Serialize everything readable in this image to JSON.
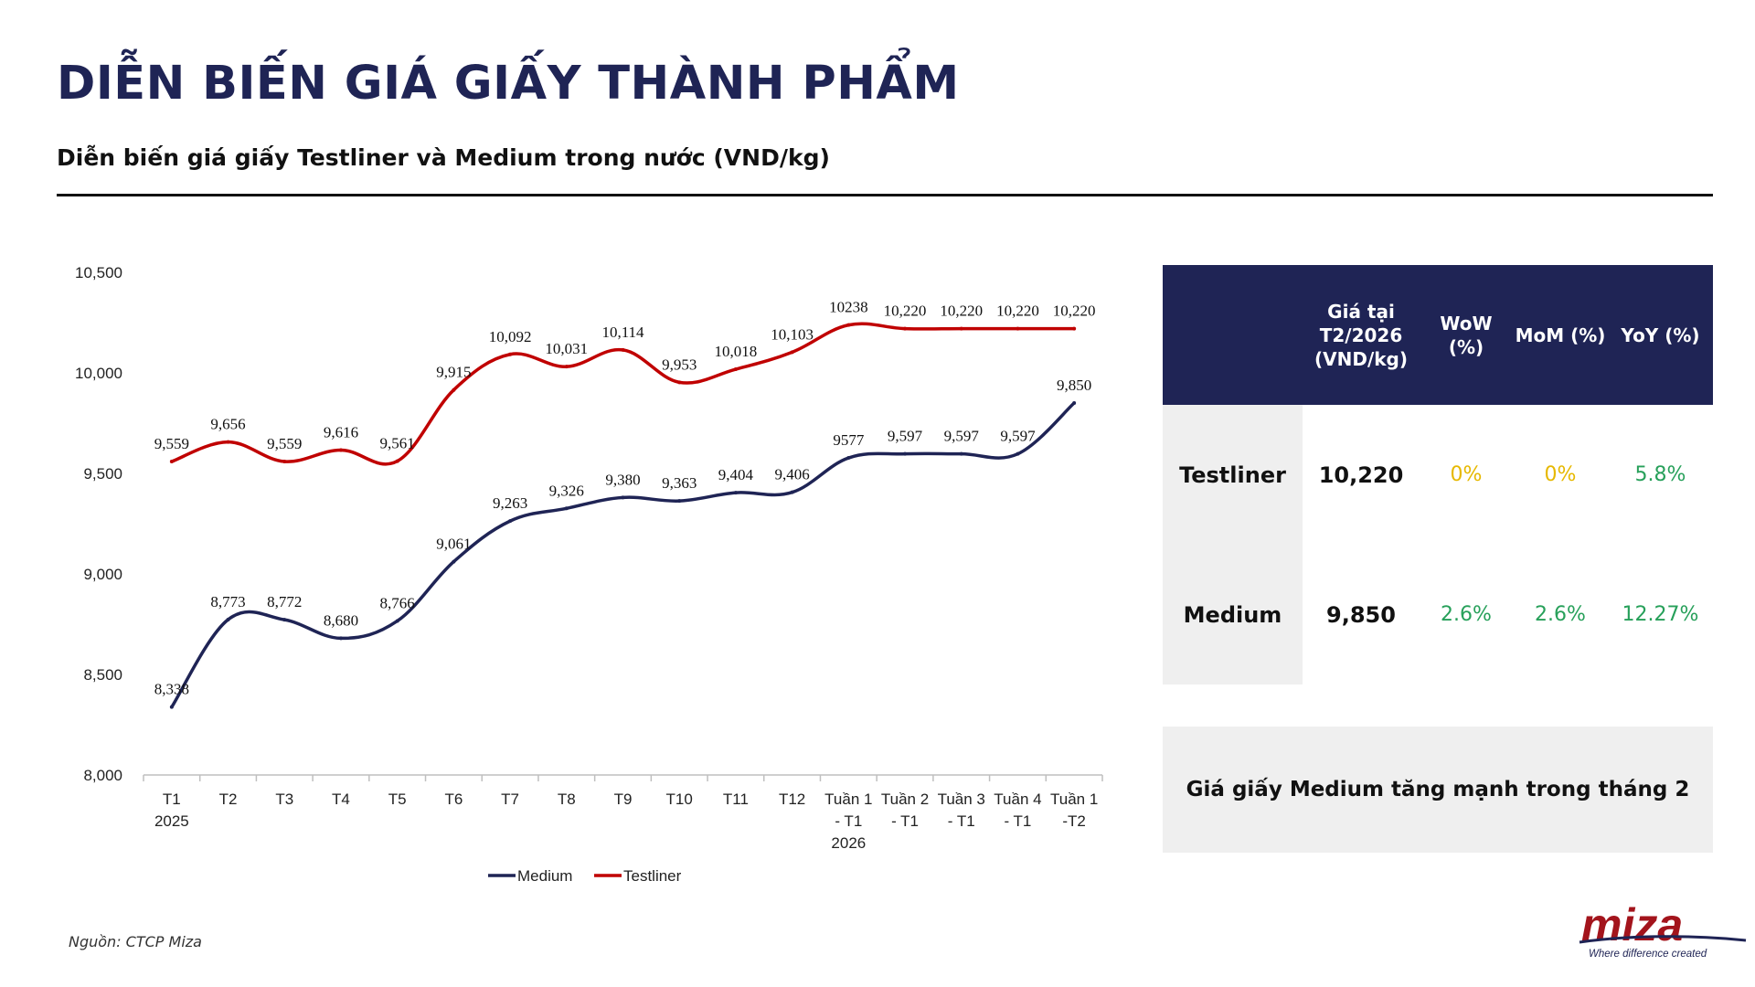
{
  "header": {
    "title": "DIỄN BIẾN GIÁ GIẤY THÀNH PHẨM",
    "subtitle": "Diễn biến giá giấy Testliner và Medium trong nước (VND/kg)"
  },
  "chart_data": {
    "type": "line",
    "categories": [
      [
        "T1",
        "2025"
      ],
      [
        "T2"
      ],
      [
        "T3"
      ],
      [
        "T4"
      ],
      [
        "T5"
      ],
      [
        "T6"
      ],
      [
        "T7"
      ],
      [
        "T8"
      ],
      [
        "T9"
      ],
      [
        "T10"
      ],
      [
        "T11"
      ],
      [
        "T12"
      ],
      [
        "Tuần 1",
        "- T1",
        "2026"
      ],
      [
        "Tuần 2",
        "- T1"
      ],
      [
        "Tuần 3",
        "- T1"
      ],
      [
        "Tuần 4",
        "- T1"
      ],
      [
        "Tuần 1",
        "-T2"
      ]
    ],
    "ylim": [
      8000,
      10500
    ],
    "yticks": [
      "8,000",
      "8,500",
      "9,000",
      "9,500",
      "10,000",
      "10,500"
    ],
    "ytick_values": [
      8000,
      8500,
      9000,
      9500,
      10000,
      10500
    ],
    "series": [
      {
        "name": "Medium",
        "color": "#1f2455",
        "values": [
          8338,
          8773,
          8772,
          8680,
          8766,
          9061,
          9263,
          9326,
          9380,
          9363,
          9404,
          9406,
          9577,
          9597,
          9597,
          9597,
          9850
        ],
        "labels": [
          "8,338",
          "8,773",
          "8,772",
          "8,680",
          "8,766",
          "9,061",
          "9,263",
          "9,326",
          "9,380",
          "9,363",
          "9,404",
          "9,406",
          "9577",
          "9,597",
          "9,597",
          "9,597",
          "9,850"
        ]
      },
      {
        "name": "Testliner",
        "color": "#c00000",
        "values": [
          9559,
          9656,
          9559,
          9616,
          9561,
          9915,
          10092,
          10031,
          10114,
          9953,
          10018,
          10103,
          10238,
          10220,
          10220,
          10220,
          10220
        ],
        "labels": [
          "9,559",
          "9,656",
          "9,559",
          "9,616",
          "9,561",
          "9,915",
          "10,092",
          "10,031",
          "10,114",
          "9,953",
          "10,018",
          "10,103",
          "10238",
          "10,220",
          "10,220",
          "10,220",
          "10,220"
        ]
      }
    ],
    "legend": "bottom",
    "grid": false
  },
  "table": {
    "headers": [
      "Giá tại T2/2026 (VND/kg)",
      "WoW (%)",
      "MoM (%)",
      "YoY (%)"
    ],
    "rows": [
      {
        "label": "Testliner",
        "price": "10,220",
        "wow": "0%",
        "mom": "0%",
        "yoy": "5.8%"
      },
      {
        "label": "Medium",
        "price": "9,850",
        "wow": "2.6%",
        "mom": "2.6%",
        "yoy": "12.27%"
      }
    ],
    "colors": {
      "neutral": "#e6b800",
      "positive": "#27a05a"
    }
  },
  "note": "Giá giấy Medium tăng mạnh trong tháng 2",
  "source": "Nguồn: CTCP Miza",
  "logo": {
    "name": "miza",
    "tagline": "Where difference created"
  }
}
